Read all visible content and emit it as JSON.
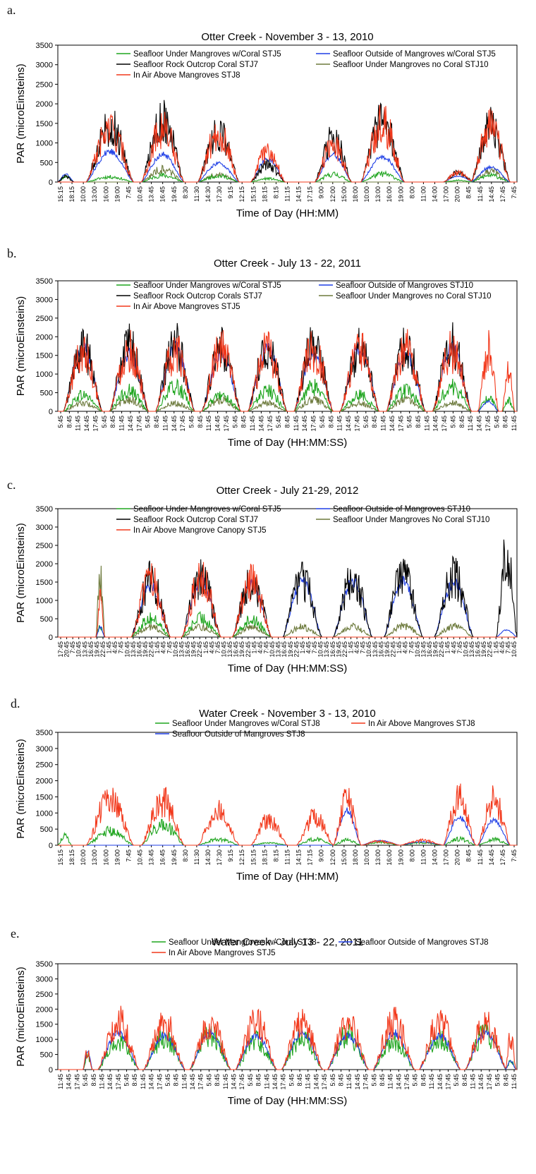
{
  "panels": [
    {
      "letter": "a."
    },
    {
      "letter": "b."
    },
    {
      "letter": "c."
    },
    {
      "letter": "d."
    },
    {
      "letter": "e."
    }
  ],
  "colors": {
    "green": "#1fa51f",
    "blue": "#1f3fe6",
    "black": "#000000",
    "olive": "#6d7a3c",
    "red": "#f2381b"
  },
  "chart_data": [
    {
      "type": "line",
      "title": "Otter Creek - November 3 - 13, 2010",
      "xlabel": "Time of Day (HH:MM)",
      "ylabel": "PAR (microEinsteins)",
      "ylim": [
        0,
        3500
      ],
      "yticks": [
        0,
        500,
        1000,
        1500,
        2000,
        2500,
        3000,
        3500
      ],
      "grid": false,
      "legend_position": "top",
      "x_tick_labels": [
        "15:15",
        "18:15",
        "10:00",
        "13:00",
        "16:00",
        "19:00",
        "7:45",
        "10:45",
        "13:45",
        "16:45",
        "19:45",
        "8:30",
        "11:30",
        "14:30",
        "17:30",
        "9:15",
        "12:15",
        "15:15",
        "18:15",
        "8:15",
        "11:15",
        "14:15",
        "17:15",
        "9:00",
        "12:00",
        "15:00",
        "18:00",
        "10:00",
        "13:00",
        "16:00",
        "19:00",
        "8:00",
        "11:00",
        "14:00",
        "17:00",
        "20:00",
        "8:45",
        "11:45",
        "14:45",
        "17:45",
        "7:45"
      ],
      "days": [
        {
          "start": 0.0,
          "end": 0.03,
          "peaks": [
            220,
            0,
            200,
            0,
            0
          ]
        },
        {
          "start": 0.075,
          "end": 0.175,
          "peaks": [
            180,
            880,
            2000,
            0,
            1850
          ]
        },
        {
          "start": 0.195,
          "end": 0.285,
          "peaks": [
            240,
            800,
            2200,
            450,
            1900
          ]
        },
        {
          "start": 0.31,
          "end": 0.395,
          "peaks": [
            230,
            540,
            1750,
            250,
            1700
          ]
        },
        {
          "start": 0.425,
          "end": 0.5,
          "peaks": [
            120,
            680,
            620,
            0,
            1100
          ]
        },
        {
          "start": 0.57,
          "end": 0.645,
          "peaks": [
            280,
            800,
            1550,
            0,
            1300
          ]
        },
        {
          "start": 0.675,
          "end": 0.755,
          "peaks": [
            280,
            700,
            2100,
            0,
            2050
          ]
        },
        {
          "start": 0.77,
          "end": 0.83,
          "peaks": [
            0,
            0,
            0,
            0,
            0
          ]
        },
        {
          "start": 0.83,
          "end": 0.9,
          "peaks": [
            60,
            180,
            330,
            0,
            340
          ]
        },
        {
          "start": 0.745,
          "end": 0.79,
          "peaks": [
            60,
            170,
            0,
            0,
            0
          ]
        }
      ],
      "series": [
        {
          "name": "Seafloor Under Mangroves w/Coral STJ5",
          "color": "green"
        },
        {
          "name": "Seafloor Outside of Mangroves w/Coral STJ5",
          "color": "blue"
        },
        {
          "name": "Seafloor Rock Outcrop Coral STJ7",
          "color": "black"
        },
        {
          "name": "Seafloor Under Mangroves no Coral STJ10",
          "color": "olive"
        },
        {
          "name": "In Air Above Mangroves STJ8",
          "color": "red"
        }
      ]
    },
    {
      "type": "line",
      "title": "Otter Creek - July 13 - 22, 2011",
      "xlabel": "Time of Day (HH:MM:SS)",
      "ylabel": "PAR (microEinsteins)",
      "ylim": [
        0,
        3500
      ],
      "yticks": [
        0,
        500,
        1000,
        1500,
        2000,
        2500,
        3000,
        3500
      ],
      "grid": false,
      "legend_position": "top",
      "x_tick_labels": [
        "5:45",
        "8:45",
        "11:45",
        "14:45",
        "17:45",
        "5:45",
        "8:45",
        "11:45",
        "14:45",
        "17:45",
        "5:45",
        "8:45",
        "11:45",
        "14:45",
        "17:45",
        "5:45",
        "8:45",
        "11:45",
        "14:45",
        "17:45",
        "5:45",
        "8:45",
        "11:45",
        "14:45",
        "17:45",
        "5:45",
        "8:45",
        "11:45",
        "14:45",
        "17:45",
        "5:45",
        "8:45",
        "11:45",
        "14:45",
        "17:45",
        "5:45",
        "8:45",
        "11:45",
        "14:45",
        "17:45",
        "5:45",
        "8:45",
        "11:45",
        "14:45",
        "17:45",
        "5:45",
        "8:45",
        "11:45",
        "14:45",
        "17:45",
        "5:45",
        "8:45",
        "11:45"
      ],
      "series": [
        {
          "name": "Seafloor Under Mangroves w/Coral STJ5",
          "color": "green"
        },
        {
          "name": "Seafloor Outside of Mangroves STJ10",
          "color": "blue"
        },
        {
          "name": "Seafloor Rock Outcrop Corals STJ7",
          "color": "black"
        },
        {
          "name": "Seafloor Under Mangroves no Coral STJ10",
          "color": "olive"
        },
        {
          "name": "In Air Above Mangroves STJ5",
          "color": "red"
        }
      ]
    },
    {
      "type": "line",
      "title": "Otter Creek - July 21-29, 2012",
      "xlabel": "Time of Day (HH:MM:SS)",
      "ylabel": "PAR (microEinsteins)",
      "ylim": [
        0,
        3500
      ],
      "yticks": [
        0,
        500,
        1000,
        1500,
        2000,
        2500,
        3000,
        3500
      ],
      "grid": false,
      "legend_position": "top",
      "x_tick_labels": [
        "17:45",
        "20:45",
        "7:45",
        "10:45",
        "13:45",
        "16:45",
        "19:45",
        "22:45",
        "1:45",
        "4:45",
        "7:45",
        "10:45",
        "13:45",
        "16:45",
        "19:45",
        "22:45",
        "1:45",
        "4:45",
        "7:45",
        "10:45",
        "13:45",
        "16:45",
        "19:45",
        "22:45",
        "1:45",
        "4:45",
        "7:45",
        "10:45",
        "13:45",
        "16:45",
        "19:45",
        "22:45",
        "1:45",
        "4:45",
        "7:45",
        "10:45",
        "13:45",
        "16:45",
        "19:45",
        "22:45",
        "1:45",
        "4:45",
        "7:45",
        "10:45",
        "13:45",
        "16:45",
        "19:45",
        "22:45",
        "1:45",
        "4:45",
        "7:45",
        "10:45",
        "13:45",
        "16:45",
        "19:45",
        "22:45",
        "1:45",
        "4:45",
        "7:45",
        "10:45",
        "13:45",
        "16:45",
        "19:45",
        "22:45",
        "1:45",
        "4:45",
        "7:45",
        "10:45",
        "13:45",
        "16:45",
        "19:45",
        "22:45",
        "1:45",
        "4:45",
        "7:45",
        "10:45"
      ],
      "series": [
        {
          "name": "Seafloor Under Mangroves w/Coral STJ5",
          "color": "green"
        },
        {
          "name": "Seafloor Outside of Mangroves STJ10",
          "color": "blue"
        },
        {
          "name": "Seafloor Rock Outcrop Coral STJ7",
          "color": "black"
        },
        {
          "name": "Seafloor Under Mangroves No Coral STJ10",
          "color": "olive"
        },
        {
          "name": "In Air Above Mangrove Canopy STJ5",
          "color": "red"
        }
      ]
    },
    {
      "type": "line",
      "title": "Water Creek - November 3 - 13, 2010",
      "xlabel": "Time of Day (HH:MM)",
      "ylabel": "PAR (microEinsteins)",
      "ylim": [
        0,
        3500
      ],
      "yticks": [
        0,
        500,
        1000,
        1500,
        2000,
        2500,
        3000,
        3500
      ],
      "grid": false,
      "legend_position": "top",
      "x_tick_labels": [
        "15:15",
        "18:15",
        "10:00",
        "13:00",
        "16:00",
        "19:00",
        "7:45",
        "10:45",
        "13:45",
        "16:45",
        "19:45",
        "8:30",
        "11:30",
        "14:30",
        "17:30",
        "9:15",
        "12:15",
        "15:15",
        "18:15",
        "8:15",
        "11:15",
        "14:15",
        "17:15",
        "9:00",
        "12:00",
        "15:00",
        "18:00",
        "10:00",
        "13:00",
        "16:00",
        "19:00",
        "8:00",
        "11:00",
        "14:00",
        "17:00",
        "20:00",
        "8:45",
        "11:45",
        "14:45",
        "17:45",
        "7:45"
      ],
      "series": [
        {
          "name": "Seafloor Under Mangroves w/Coral STJ8",
          "color": "green"
        },
        {
          "name": "In Air Above Mangroves STJ8",
          "color": "red"
        },
        {
          "name": "Seafloor Outside of Mangroves STJ8",
          "color": "blue"
        }
      ]
    },
    {
      "type": "line",
      "title": "Water Creek - July 13 - 22, 2011",
      "xlabel": "Time of Day (HH:MM:SS)",
      "ylabel": "PAR (microEinsteins)",
      "ylim": [
        0,
        3500
      ],
      "yticks": [
        0,
        500,
        1000,
        1500,
        2000,
        2500,
        3000,
        3500
      ],
      "grid": false,
      "legend_position": "top",
      "x_tick_labels": [
        "11:45",
        "14:45",
        "17:45",
        "5:45",
        "8:45",
        "11:45",
        "14:45",
        "17:45",
        "5:45",
        "8:45",
        "11:45",
        "14:45",
        "17:45",
        "5:45",
        "8:45",
        "11:45",
        "14:45",
        "17:45",
        "5:45",
        "8:45",
        "11:45",
        "14:45",
        "17:45",
        "5:45",
        "8:45",
        "11:45",
        "14:45",
        "17:45",
        "5:45",
        "8:45",
        "11:45",
        "14:45",
        "17:45",
        "5:45",
        "8:45",
        "11:45",
        "14:45",
        "17:45",
        "5:45",
        "8:45",
        "11:45",
        "14:45",
        "17:45",
        "5:45",
        "8:45",
        "11:45",
        "14:45",
        "17:45",
        "5:45",
        "8:45",
        "11:45",
        "14:45",
        "17:45",
        "5:45",
        "8:45",
        "11:45"
      ],
      "series": [
        {
          "name": "Seafloor Under Mangroves w/Coral STJ8",
          "color": "green"
        },
        {
          "name": "Seafloor Outside of Mangroves STJ8",
          "color": "blue"
        },
        {
          "name": "In Air Above Mangroves STJ5",
          "color": "red"
        }
      ]
    }
  ]
}
